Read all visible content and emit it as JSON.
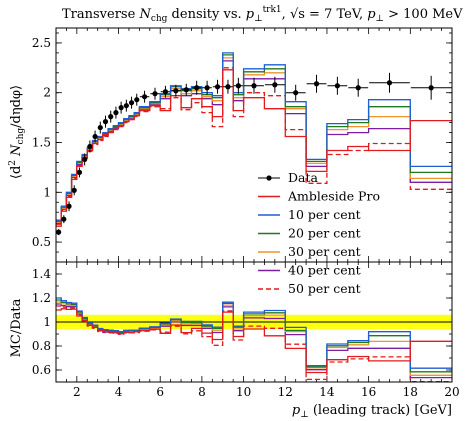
{
  "chart_data": [
    {
      "type": "step-histogram",
      "panel": "main",
      "title": "Transverse N_chg density vs. p_⊥^trk1, √s = 7 TeV, p_⊥ > 100 MeV",
      "title_parts": {
        "a": "Transverse ",
        "b": "N",
        "c": "chg",
        "d": " density vs. ",
        "e": "p",
        "f": "⊥",
        "g": "trk1",
        "h": ", ",
        "i": "√s",
        "j": " = 7 TeV, ",
        "k": "p",
        "l": "⊥",
        "m": " > 100 MeV"
      },
      "ylabel": "⟨d² N_chg/dηdφ⟩",
      "ylabel_parts": {
        "a": "⟨d",
        "b": "2",
        "c": " N",
        "d": "chg",
        "e": "/dηdφ⟩"
      },
      "xlim": [
        1,
        20
      ],
      "ylim": [
        0.3,
        2.65
      ],
      "y_ticks": [
        0.5,
        1,
        1.5,
        2,
        2.5
      ],
      "y_tick_labels": [
        "0.5",
        "1",
        "1.5",
        "2",
        "2.5"
      ],
      "bin_edges": [
        1.0,
        1.25,
        1.5,
        1.75,
        2.0,
        2.25,
        2.5,
        2.75,
        3.0,
        3.25,
        3.5,
        3.75,
        4.0,
        4.25,
        4.5,
        4.75,
        5.0,
        5.5,
        6.0,
        6.5,
        7.0,
        7.5,
        8.0,
        8.5,
        9.0,
        9.5,
        10.0,
        11.0,
        12.0,
        13.0,
        14.0,
        15.0,
        16.0,
        18.0,
        20.0
      ],
      "data": {
        "name": "Data",
        "x": [
          1.125,
          1.375,
          1.625,
          1.875,
          2.125,
          2.375,
          2.625,
          2.875,
          3.125,
          3.375,
          3.625,
          3.875,
          4.125,
          4.375,
          4.625,
          4.875,
          5.25,
          5.75,
          6.25,
          6.75,
          7.25,
          7.75,
          8.25,
          8.75,
          9.25,
          9.75,
          10.5,
          11.5,
          12.5,
          13.5,
          14.5,
          15.5,
          17.0,
          19.0
        ],
        "y": [
          0.6,
          0.73,
          0.86,
          1.02,
          1.2,
          1.33,
          1.46,
          1.56,
          1.65,
          1.71,
          1.76,
          1.8,
          1.85,
          1.87,
          1.9,
          1.93,
          1.96,
          1.99,
          2.01,
          2.02,
          2.03,
          2.05,
          2.05,
          2.06,
          2.06,
          2.07,
          2.07,
          2.08,
          2.0,
          2.09,
          2.07,
          2.05,
          2.1,
          2.05
        ],
        "yerr": [
          0.03,
          0.04,
          0.05,
          0.05,
          0.05,
          0.06,
          0.06,
          0.06,
          0.06,
          0.06,
          0.06,
          0.06,
          0.06,
          0.06,
          0.06,
          0.06,
          0.06,
          0.06,
          0.06,
          0.06,
          0.06,
          0.07,
          0.07,
          0.07,
          0.07,
          0.08,
          0.08,
          0.08,
          0.08,
          0.09,
          0.09,
          0.09,
          0.1,
          0.12
        ]
      },
      "series": [
        {
          "name": "Ambleside Pro",
          "color": "#e41a1c",
          "dash": "solid",
          "values": [
            0.66,
            0.81,
            0.95,
            1.13,
            1.26,
            1.35,
            1.42,
            1.49,
            1.53,
            1.58,
            1.61,
            1.65,
            1.67,
            1.71,
            1.73,
            1.77,
            1.82,
            1.87,
            1.82,
            1.97,
            1.85,
            1.94,
            1.86,
            1.76,
            2.23,
            1.82,
            1.95,
            1.84,
            1.56,
            1.21,
            1.42,
            1.46,
            1.42,
            1.72
          ]
        },
        {
          "name": "10 per cent",
          "color": "#1f5fd6",
          "dash": "solid",
          "values": [
            0.72,
            0.86,
            1.0,
            1.18,
            1.31,
            1.38,
            1.45,
            1.52,
            1.56,
            1.6,
            1.64,
            1.67,
            1.7,
            1.74,
            1.77,
            1.8,
            1.86,
            1.91,
            1.99,
            2.07,
            2.04,
            2.06,
            2.0,
            1.97,
            2.4,
            2.0,
            2.24,
            2.28,
            1.91,
            1.33,
            1.69,
            1.73,
            1.93,
            1.26
          ]
        },
        {
          "name": "20 per cent",
          "color": "#1f7a1f",
          "dash": "solid",
          "values": [
            0.71,
            0.85,
            0.99,
            1.17,
            1.3,
            1.37,
            1.44,
            1.51,
            1.55,
            1.59,
            1.63,
            1.66,
            1.69,
            1.73,
            1.76,
            1.79,
            1.85,
            1.9,
            1.98,
            2.06,
            2.02,
            2.04,
            1.98,
            1.95,
            2.38,
            1.98,
            2.21,
            2.24,
            1.86,
            1.31,
            1.66,
            1.7,
            1.86,
            1.2
          ]
        },
        {
          "name": "30 per cent",
          "color": "#f0932b",
          "dash": "solid",
          "values": [
            0.7,
            0.84,
            0.98,
            1.16,
            1.29,
            1.36,
            1.43,
            1.5,
            1.54,
            1.58,
            1.62,
            1.65,
            1.68,
            1.72,
            1.75,
            1.78,
            1.84,
            1.89,
            1.96,
            2.04,
            1.99,
            2.02,
            1.96,
            1.92,
            2.35,
            1.95,
            2.18,
            2.2,
            1.84,
            1.29,
            1.63,
            1.66,
            1.76,
            1.14
          ]
        },
        {
          "name": "40 per cent",
          "color": "#7a1fa2",
          "dash": "solid",
          "values": [
            0.69,
            0.83,
            0.97,
            1.15,
            1.28,
            1.35,
            1.42,
            1.49,
            1.53,
            1.57,
            1.61,
            1.64,
            1.67,
            1.71,
            1.74,
            1.77,
            1.83,
            1.88,
            1.94,
            2.02,
            1.97,
            1.99,
            1.94,
            1.88,
            2.32,
            1.92,
            2.14,
            2.14,
            1.79,
            1.26,
            1.58,
            1.6,
            1.64,
            1.1
          ]
        },
        {
          "name": "50 per cent",
          "color": "#e41a1c",
          "dash": "dashed",
          "values": [
            0.68,
            0.82,
            0.96,
            1.14,
            1.27,
            1.34,
            1.41,
            1.48,
            1.52,
            1.56,
            1.6,
            1.63,
            1.66,
            1.7,
            1.73,
            1.76,
            1.81,
            1.86,
            1.84,
            1.95,
            1.83,
            1.9,
            1.8,
            1.66,
            2.25,
            1.76,
            2.0,
            1.97,
            1.63,
            1.09,
            1.38,
            1.42,
            1.49,
            1.03
          ]
        }
      ]
    },
    {
      "type": "step-histogram",
      "panel": "ratio",
      "ylabel": "MC/Data",
      "xlabel": "p⊥ (leading track) [GeV]",
      "xlabel_parts": {
        "a": "p",
        "b": "⊥",
        "c": " (leading track) [GeV]"
      },
      "xlim": [
        1,
        20
      ],
      "ylim": [
        0.5,
        1.5
      ],
      "y_ticks": [
        0.6,
        0.8,
        1,
        1.2,
        1.4
      ],
      "y_tick_labels": [
        "0.6",
        "0.8",
        "1",
        "1.2",
        "1.4"
      ],
      "x_ticks": [
        2,
        4,
        6,
        8,
        10,
        12,
        14,
        16,
        18,
        20
      ],
      "x_tick_labels": [
        "2",
        "4",
        "6",
        "8",
        "10",
        "12",
        "14",
        "16",
        "18",
        "20"
      ],
      "band_outer": [
        0.94,
        1.06
      ],
      "band_inner": [
        0.97,
        1.03
      ],
      "band_color": "#ffff00"
    }
  ]
}
